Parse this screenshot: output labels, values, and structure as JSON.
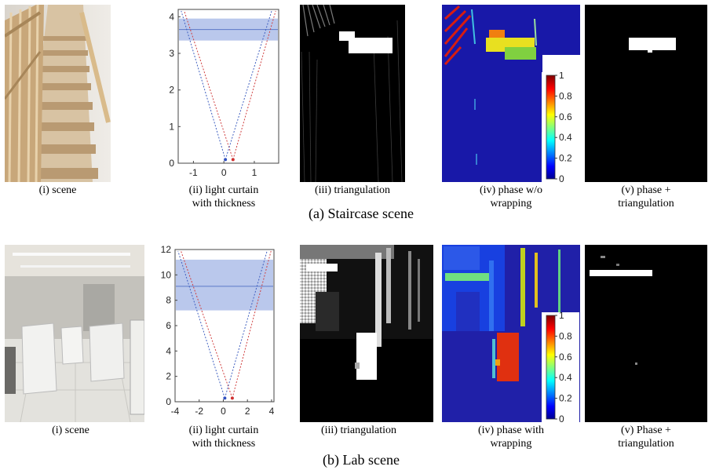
{
  "figure": {
    "rows": [
      {
        "title": "(a) Staircase scene",
        "captions": {
          "scene": "(i) scene",
          "curtain_1": "(ii) light curtain",
          "curtain_2": "with thickness",
          "triangulation": "(iii) triangulation",
          "phase_1": "(iv) phase w/o",
          "phase_2": "wrapping",
          "combined_1": "(v) phase +",
          "combined_2": "triangulation"
        },
        "plot": {
          "xticks": [
            "-1",
            "0",
            "1"
          ],
          "yticks": [
            "0",
            "1",
            "2",
            "3",
            "4"
          ]
        }
      },
      {
        "title": "(b) Lab scene",
        "captions": {
          "scene": "(i) scene",
          "curtain_1": "(ii) light curtain",
          "curtain_2": "with thickness",
          "triangulation": "(iii) triangulation",
          "phase_1": "(iv) phase with",
          "phase_2": "wrapping",
          "combined_1": "(v) Phase +",
          "combined_2": "triangulation"
        },
        "plot": {
          "xticks": [
            "-4",
            "-2",
            "0",
            "2",
            "4"
          ],
          "yticks": [
            "0",
            "2",
            "4",
            "6",
            "8",
            "10",
            "12"
          ]
        }
      }
    ],
    "colorbar": {
      "ticks": [
        "1",
        "0.8",
        "0.6",
        "0.4",
        "0.2",
        "0"
      ]
    }
  },
  "chart_data": [
    {
      "type": "line",
      "x_range": [
        -1.5,
        1.8
      ],
      "y_range": [
        0,
        4.2
      ],
      "curtain_band": [
        3.35,
        3.95
      ],
      "curtain_center": 3.65
    },
    {
      "type": "line",
      "x_range": [
        -4,
        4.2
      ],
      "y_range": [
        0,
        12
      ],
      "curtain_band": [
        7.2,
        11.2
      ],
      "curtain_center": 9.1
    }
  ]
}
